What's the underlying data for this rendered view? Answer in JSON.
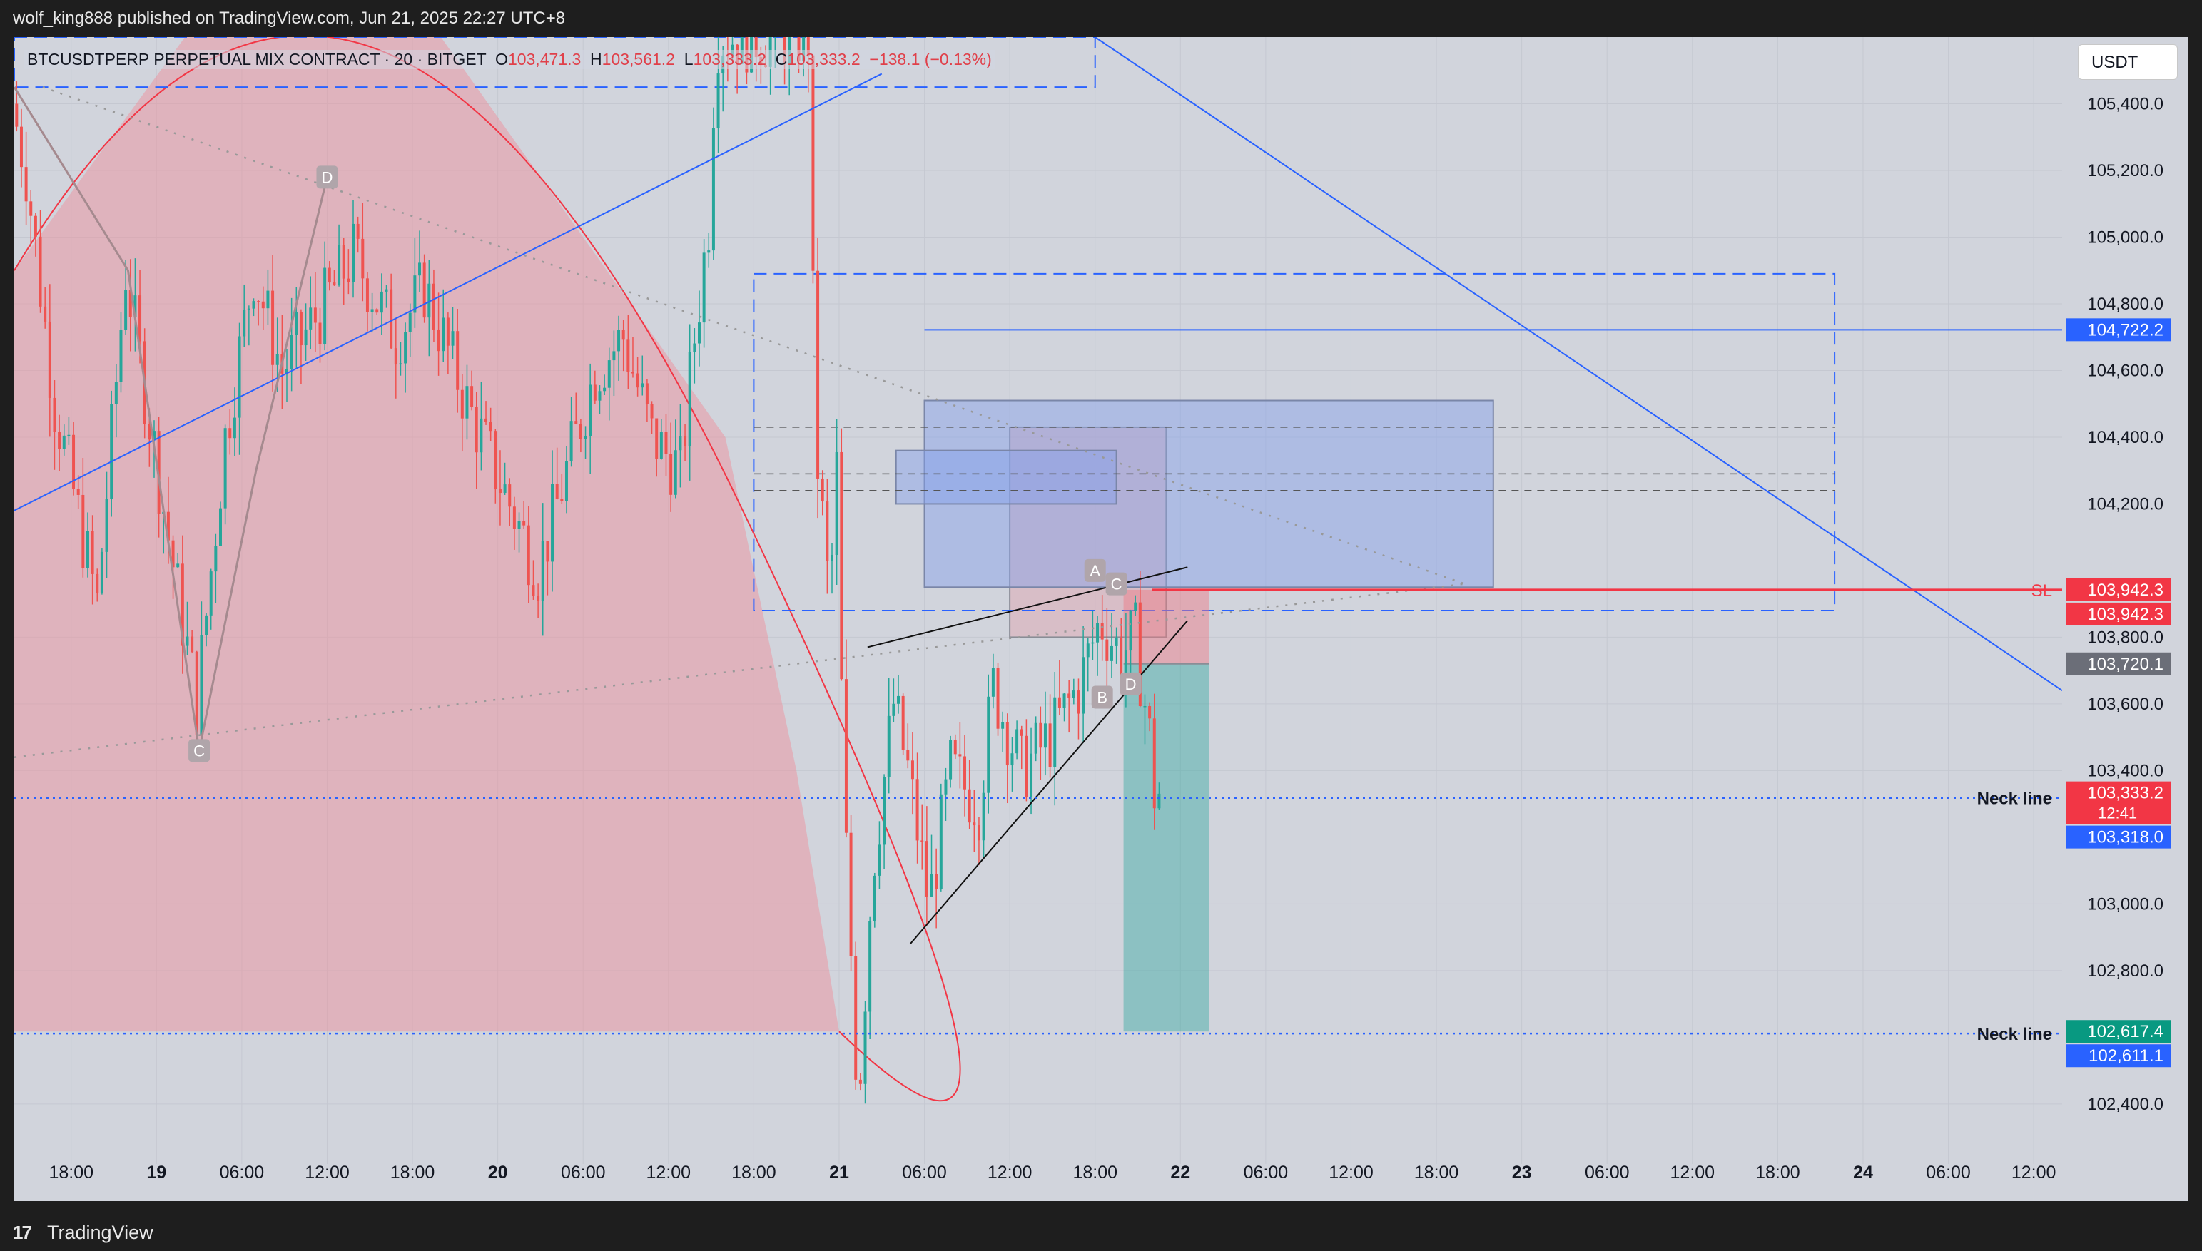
{
  "header": {
    "publish_line": "wolf_king888 published on TradingView.com, Jun 21, 2025 22:27 UTC+8"
  },
  "legend": {
    "symbol": "BTCUSDTPERP PERPETUAL MIX CONTRACT · 20 · BITGET",
    "open_label": "O",
    "open_value": "103,471.3",
    "high_label": "H",
    "high_value": "103,561.2",
    "low_label": "L",
    "low_value": "103,333.2",
    "close_label": "C",
    "close_value": "103,333.2",
    "change": "−138.1 (−0.13%)"
  },
  "currency_button": "USDT",
  "footer": {
    "logo": "17",
    "brand": "TradingView"
  },
  "colors": {
    "background": "#d1d4dc",
    "up": "#26a69a",
    "down": "#ef5350",
    "blue": "#2962ff",
    "sl": "#f23645"
  },
  "chart_data": {
    "type": "candlestick",
    "title": "BTCUSDTPERP PERPETUAL MIX CONTRACT · 20 · BITGET",
    "y_axis": {
      "ylim": [
        102220,
        105600
      ],
      "ticks": [
        105400,
        105200,
        105000,
        104800,
        104600,
        104400,
        104200,
        103800,
        103600,
        103400,
        103000,
        102800,
        102400
      ],
      "tick_labels": [
        "105,400.0",
        "105,200.0",
        "105,000.0",
        "104,800.0",
        "104,600.0",
        "104,400.0",
        "104,200.0",
        "103,800.0",
        "103,600.0",
        "103,400.0",
        "103,000.0",
        "102,800.0",
        "102,400.0"
      ]
    },
    "x_axis": {
      "start": "2025-06-18 14:00",
      "end": "2025-06-24 14:00",
      "ticks": [
        "2025-06-18 18:00",
        "2025-06-19 00:00",
        "2025-06-19 06:00",
        "2025-06-19 12:00",
        "2025-06-19 18:00",
        "2025-06-20 00:00",
        "2025-06-20 06:00",
        "2025-06-20 12:00",
        "2025-06-20 18:00",
        "2025-06-21 00:00",
        "2025-06-21 06:00",
        "2025-06-21 12:00",
        "2025-06-21 18:00",
        "2025-06-22 00:00",
        "2025-06-22 06:00",
        "2025-06-22 12:00",
        "2025-06-22 18:00",
        "2025-06-23 00:00",
        "2025-06-23 06:00",
        "2025-06-23 12:00",
        "2025-06-23 18:00",
        "2025-06-24 00:00",
        "2025-06-24 06:00",
        "2025-06-24 12:00"
      ],
      "tick_labels": [
        "18:00",
        "19",
        "06:00",
        "12:00",
        "18:00",
        "20",
        "06:00",
        "12:00",
        "18:00",
        "21",
        "06:00",
        "12:00",
        "18:00",
        "22",
        "06:00",
        "12:00",
        "18:00",
        "23",
        "06:00",
        "12:00",
        "18:00",
        "24",
        "06:00",
        "12:00"
      ]
    },
    "grid": true,
    "price_path": [
      [
        "2025-06-18 14:00",
        105400
      ],
      [
        "2025-06-18 15:00",
        105200
      ],
      [
        "2025-06-18 17:00",
        104500
      ],
      [
        "2025-06-18 20:00",
        103900
      ],
      [
        "2025-06-18 22:00",
        104900
      ],
      [
        "2025-06-19 01:00",
        104100
      ],
      [
        "2025-06-19 03:00",
        103600
      ],
      [
        "2025-06-19 05:00",
        104400
      ],
      [
        "2025-06-19 07:00",
        104900
      ],
      [
        "2025-06-19 09:00",
        104600
      ],
      [
        "2025-06-19 12:00",
        104800
      ],
      [
        "2025-06-19 14:00",
        104950
      ],
      [
        "2025-06-19 17:00",
        104700
      ],
      [
        "2025-06-19 19:00",
        104850
      ],
      [
        "2025-06-19 22:00",
        104500
      ],
      [
        "2025-06-20 01:00",
        104200
      ],
      [
        "2025-06-20 03:00",
        104000
      ],
      [
        "2025-06-20 05:00",
        104300
      ],
      [
        "2025-06-20 07:00",
        104600
      ],
      [
        "2025-06-20 09:00",
        104700
      ],
      [
        "2025-06-20 11:00",
        104400
      ],
      [
        "2025-06-20 13:00",
        104300
      ],
      [
        "2025-06-20 14:00",
        104700
      ],
      [
        "2025-06-20 15:00",
        105050
      ],
      [
        "2025-06-20 15:30",
        105600
      ],
      [
        "2025-06-20 17:00",
        105600
      ],
      [
        "2025-06-20 22:00",
        105600
      ],
      [
        "2025-06-20 22:30",
        104400
      ],
      [
        "2025-06-20 23:30",
        103900
      ],
      [
        "2025-06-21 00:00",
        104300
      ],
      [
        "2025-06-21 00:30",
        103300
      ],
      [
        "2025-06-21 01:30",
        102400
      ],
      [
        "2025-06-21 02:30",
        103100
      ],
      [
        "2025-06-21 04:00",
        103600
      ],
      [
        "2025-06-21 05:00",
        103400
      ],
      [
        "2025-06-21 06:30",
        103000
      ],
      [
        "2025-06-21 08:00",
        103400
      ],
      [
        "2025-06-21 10:00",
        103300
      ],
      [
        "2025-06-21 11:00",
        103650
      ],
      [
        "2025-06-21 13:00",
        103400
      ],
      [
        "2025-06-21 15:00",
        103500
      ],
      [
        "2025-06-21 17:00",
        103650
      ],
      [
        "2025-06-21 18:30",
        103850
      ],
      [
        "2025-06-21 20:00",
        103750
      ],
      [
        "2025-06-21 21:00",
        103800
      ],
      [
        "2025-06-21 22:00",
        103500
      ],
      [
        "2025-06-21 22:20",
        103333.2
      ]
    ],
    "last_candle": {
      "open": 103471.3,
      "high": 103561.2,
      "low": 103333.2,
      "close": 103333.2,
      "change": -138.1,
      "change_pct": -0.13
    },
    "price_labels": [
      {
        "value": 104722.2,
        "text": "104,722.2",
        "color": "#2962ff"
      },
      {
        "value": 103942.3,
        "text": "103,942.3",
        "color": "#f23645"
      },
      {
        "value": 103942.3,
        "text": "103,942.3",
        "color": "#f23645",
        "offset": "below"
      },
      {
        "value": 103720.1,
        "text": "103,720.1",
        "color": "#6b6e78"
      },
      {
        "value": 103333.2,
        "text": "103,333.2",
        "sub": "12:41",
        "color": "#f23645"
      },
      {
        "value": 103318.0,
        "text": "103,318.0",
        "color": "#2962ff"
      },
      {
        "value": 102617.4,
        "text": "102,617.4",
        "color": "#089981"
      },
      {
        "value": 102611.1,
        "text": "102,611.1",
        "color": "#2962ff"
      }
    ],
    "annotations": {
      "sl": {
        "text": "SL",
        "value": 103942.3
      },
      "neck_lines": [
        {
          "text": "Neck line",
          "value": 103318.0
        },
        {
          "text": "Neck line",
          "value": 102611.1
        }
      ],
      "pattern_points_left": [
        {
          "label": "D",
          "time": "2025-06-19 12:00",
          "value": 105180
        },
        {
          "label": "C",
          "time": "2025-06-19 03:00",
          "value": 103460
        }
      ],
      "pattern_points_right": [
        {
          "label": "A",
          "time": "2025-06-21 18:00",
          "value": 104000
        },
        {
          "label": "C",
          "time": "2025-06-21 19:30",
          "value": 103960
        },
        {
          "label": "B",
          "time": "2025-06-21 18:30",
          "value": 103620
        },
        {
          "label": "D",
          "time": "2025-06-21 20:30",
          "value": 103660
        }
      ],
      "dashed_box_top": {
        "from": "2025-06-18 14:00",
        "to": "2025-06-21 18:00",
        "top": 105600,
        "bottom": 105450
      },
      "dashed_box_main": {
        "from": "2025-06-20 18:00",
        "to": "2025-06-23 22:00",
        "top": 104890,
        "bottom": 103880
      },
      "zones": [
        {
          "from": "2025-06-21 12:00",
          "to": "2025-06-21 23:00",
          "top": 104430,
          "bottom": 103800,
          "kind": "sell-zone"
        },
        {
          "from": "2025-06-21 06:00",
          "to": "2025-06-22 22:00",
          "top": 104510,
          "bottom": 103950,
          "kind": "order-block"
        },
        {
          "from": "2025-06-21 04:00",
          "to": "2025-06-21 19:30",
          "top": 104360,
          "bottom": 104200,
          "kind": "order-block"
        }
      ],
      "position": {
        "from": "2025-06-21 20:00",
        "to": "2025-06-22 02:00",
        "entry": 103720.1,
        "stop": 103942.3,
        "target": 102617.4
      }
    }
  }
}
